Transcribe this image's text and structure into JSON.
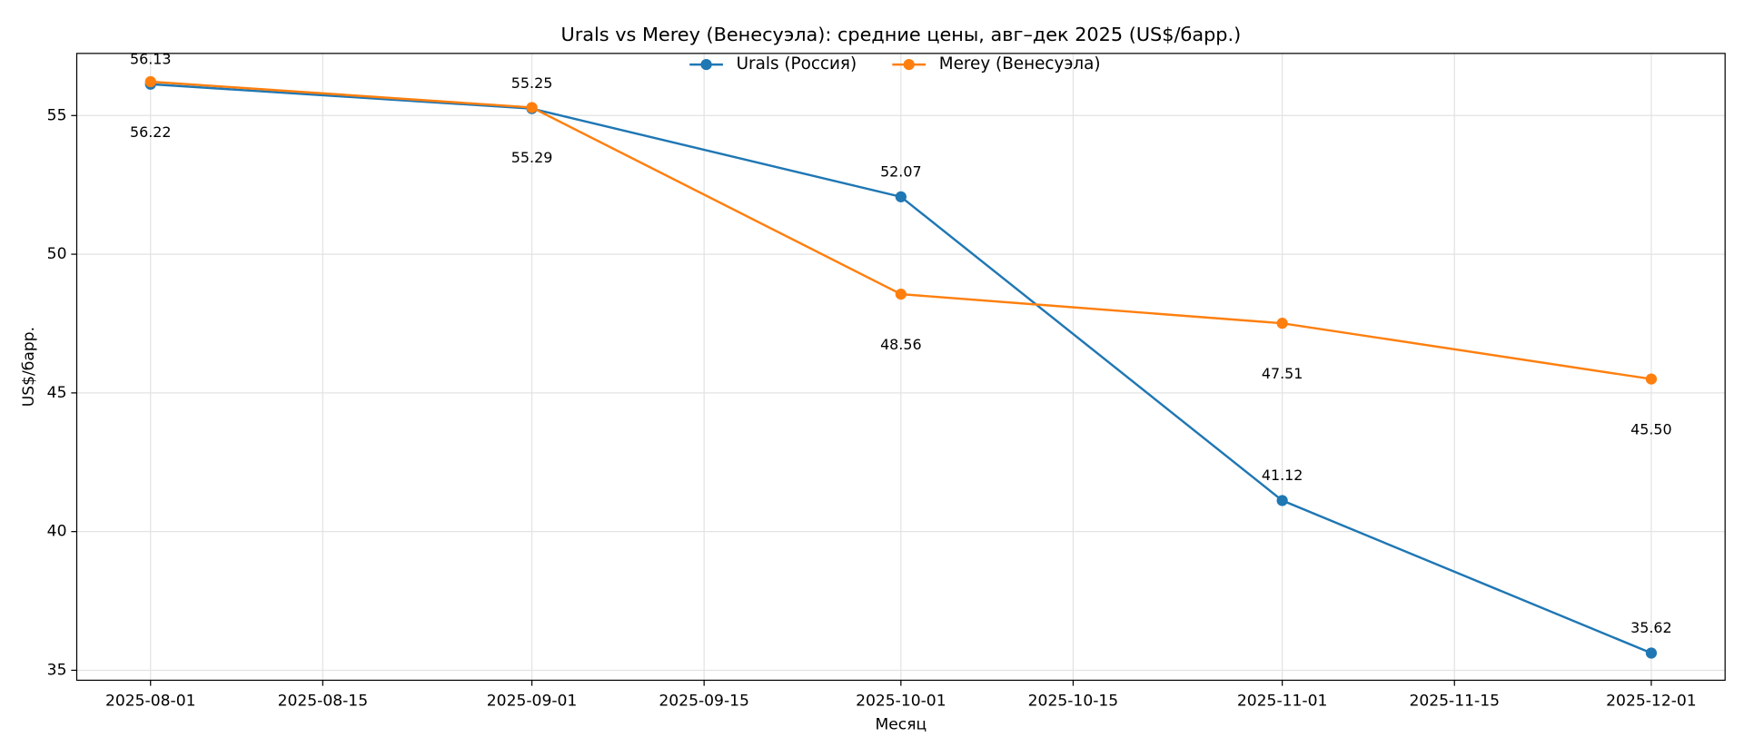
{
  "chart_data": {
    "type": "line",
    "title": "Urals vs Merey (Венесуэла): средние цены, авг–дек 2025 (US$/барр.)",
    "xlabel": "Месяц",
    "ylabel": "US$/барр.",
    "x": [
      "2025-08-01",
      "2025-09-01",
      "2025-10-01",
      "2025-11-01",
      "2025-12-01"
    ],
    "series": [
      {
        "name": "Urals (Россия)",
        "color": "#1f77b4",
        "values": [
          56.13,
          55.25,
          52.07,
          41.12,
          35.62
        ]
      },
      {
        "name": "Merey (Венесуэла)",
        "color": "#ff7f0e",
        "values": [
          56.22,
          55.29,
          48.56,
          47.51,
          45.5
        ],
        "value_labels": [
          "56.22",
          "55.29",
          "48.56",
          "47.51",
          "45.50"
        ]
      }
    ],
    "xlim": [
      "2025-07-26",
      "2025-12-07"
    ],
    "xticks": [
      "2025-08-01",
      "2025-08-15",
      "2025-09-01",
      "2025-09-15",
      "2025-10-01",
      "2025-10-15",
      "2025-11-01",
      "2025-11-15",
      "2025-12-01"
    ],
    "ylim": [
      34.64,
      57.24
    ],
    "yticks": [
      35,
      40,
      45,
      50,
      55
    ],
    "grid": true,
    "legend": "upper center"
  }
}
